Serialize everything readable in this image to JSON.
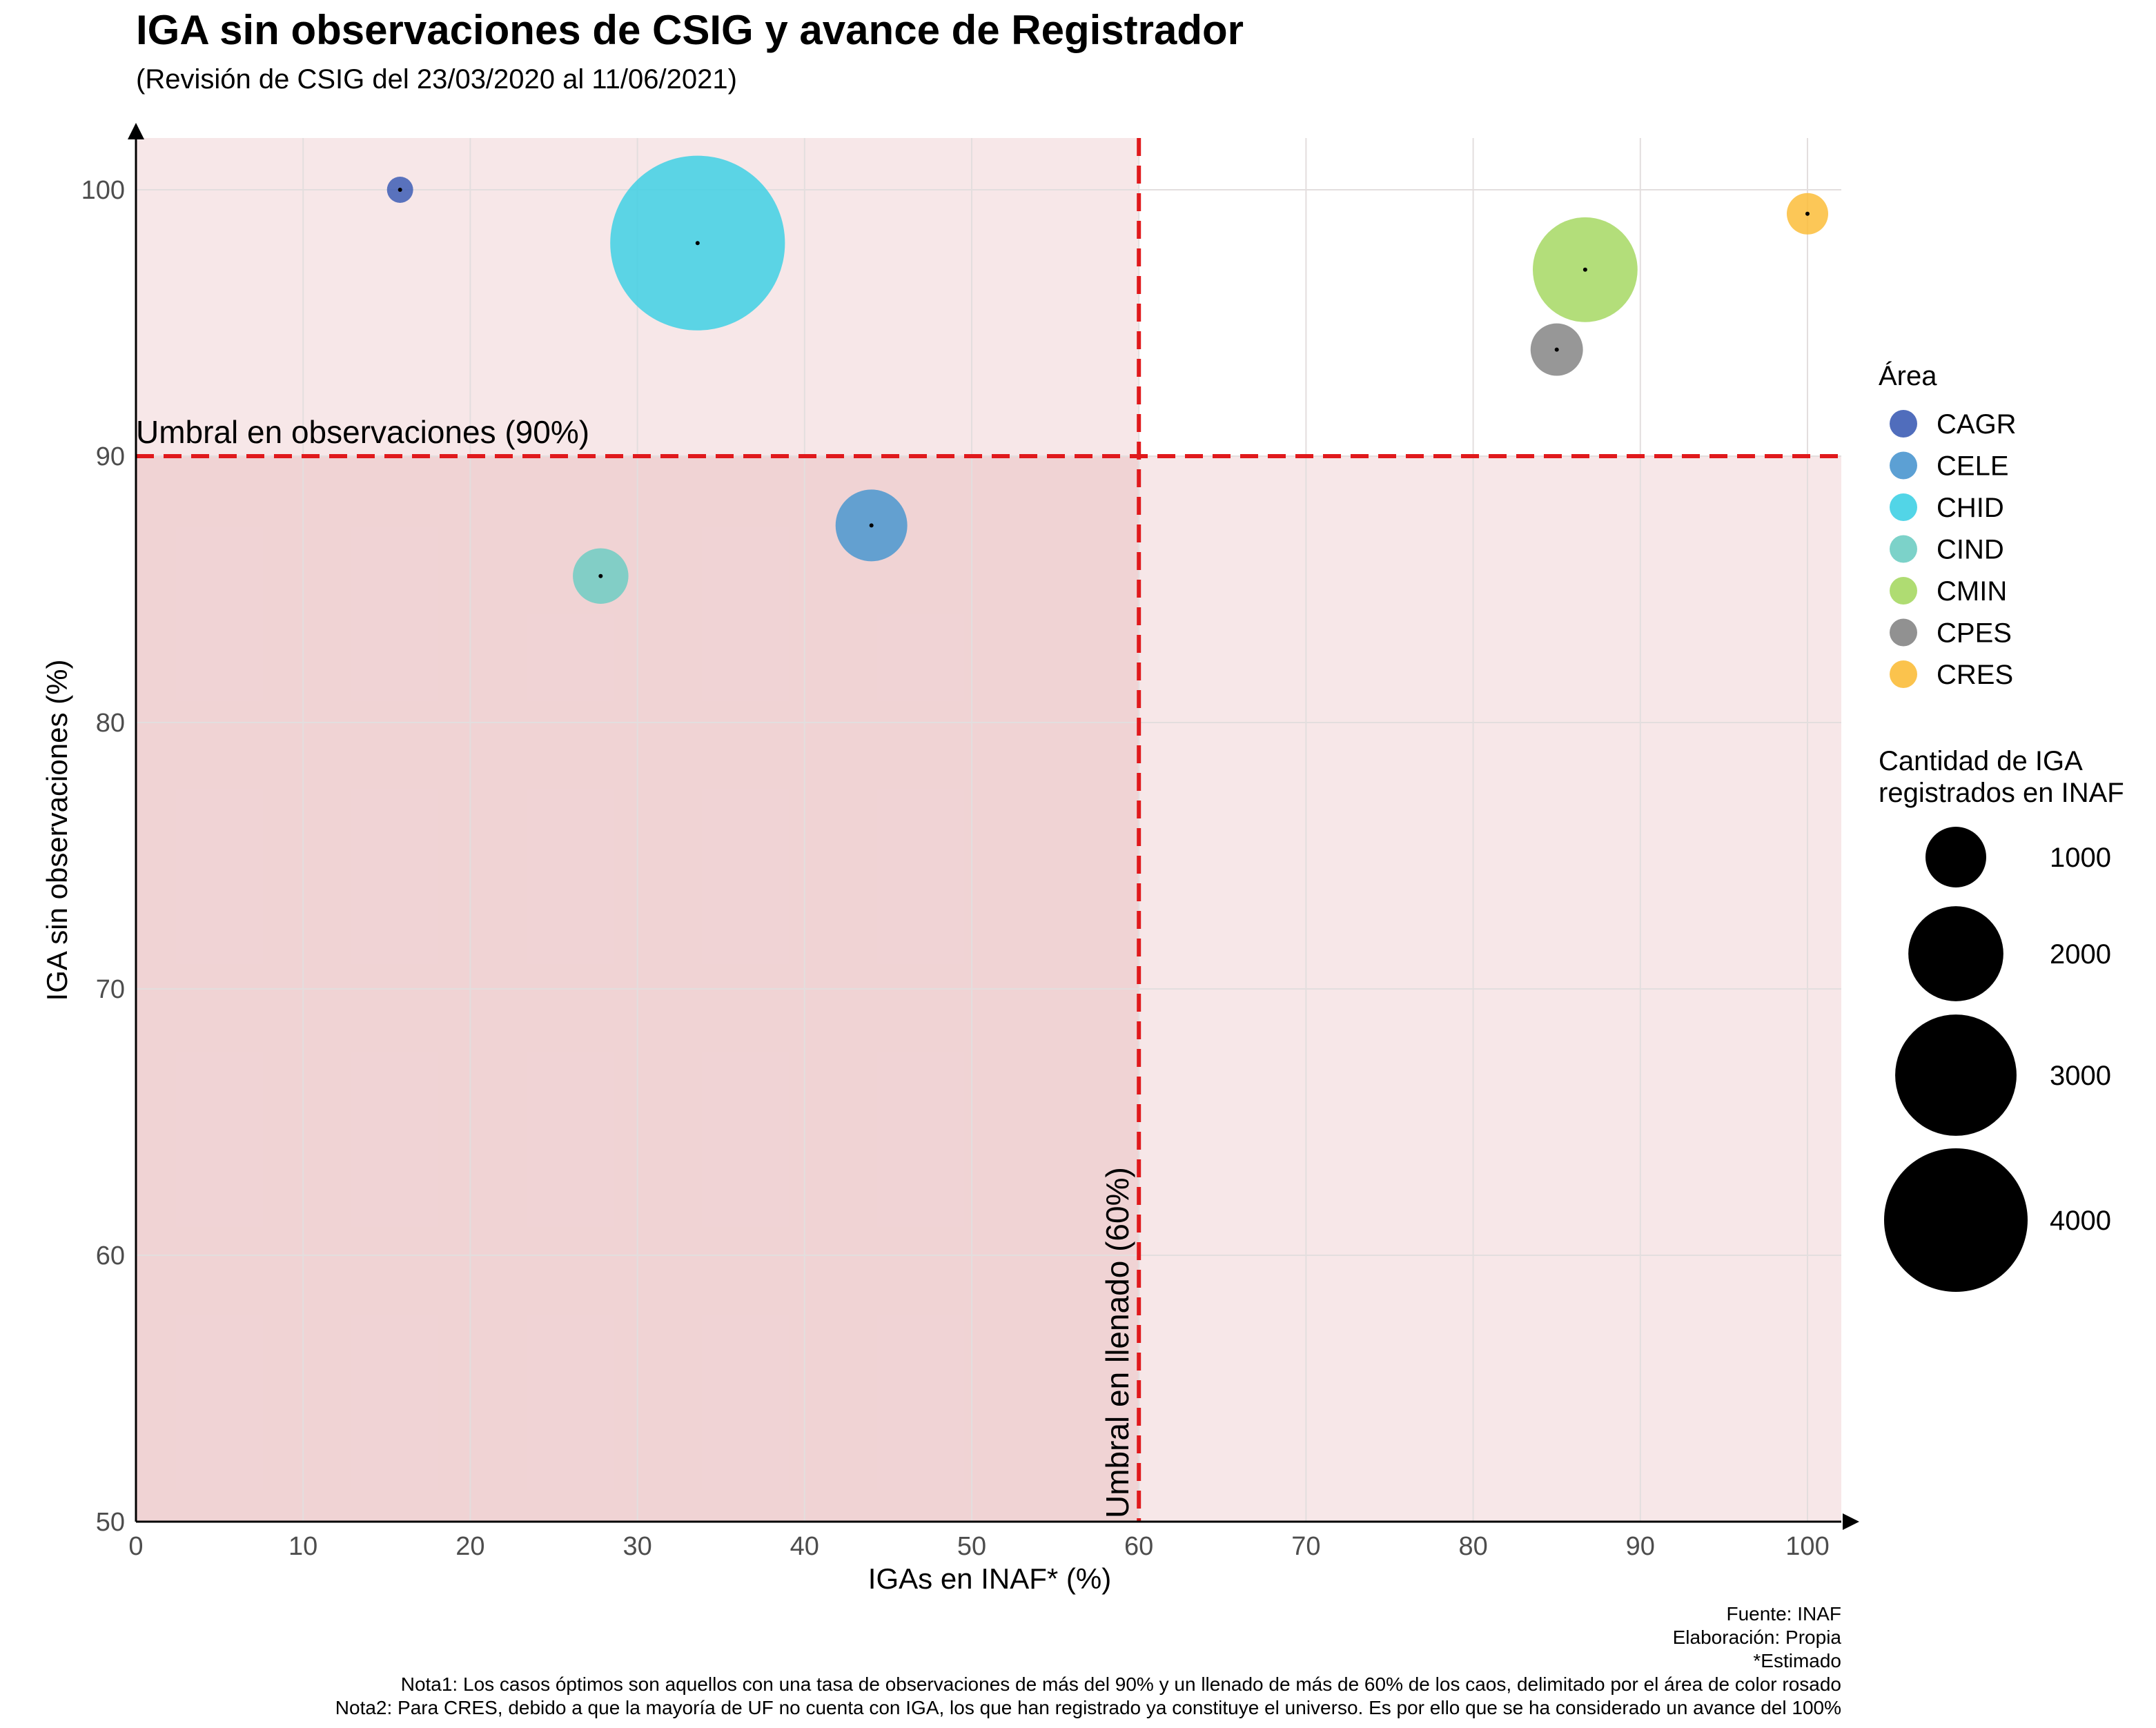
{
  "chart_data": {
    "type": "scatter",
    "title": "IGA sin observaciones de CSIG y avance de Registrador",
    "subtitle": "(Revisión de CSIG del 23/03/2020 al 11/06/2021)",
    "xlabel": "IGAs en INAF* (%)",
    "ylabel": "IGA sin observaciones (%)",
    "xlim": [
      0,
      102
    ],
    "ylim": [
      50,
      102
    ],
    "x_ticks": [
      0,
      10,
      20,
      30,
      40,
      50,
      60,
      70,
      80,
      90,
      100
    ],
    "y_ticks": [
      50,
      60,
      70,
      80,
      90,
      100
    ],
    "grid": true,
    "thresholds": {
      "x": 60,
      "y": 90,
      "x_label": "Umbral en llenado (60%)",
      "y_label": "Umbral en observaciones (90%)"
    },
    "points": [
      {
        "area": "CAGR",
        "x": 15.8,
        "y": 100.0,
        "size": 100
      },
      {
        "area": "CELE",
        "x": 44.0,
        "y": 87.4,
        "size": 750
      },
      {
        "area": "CHID",
        "x": 33.6,
        "y": 98.0,
        "size": 4450
      },
      {
        "area": "CIND",
        "x": 27.8,
        "y": 85.5,
        "size": 450
      },
      {
        "area": "CMIN",
        "x": 86.7,
        "y": 97.0,
        "size": 1600
      },
      {
        "area": "CPES",
        "x": 85.0,
        "y": 94.0,
        "size": 400
      },
      {
        "area": "CRES",
        "x": 100.0,
        "y": 99.1,
        "size": 250
      }
    ],
    "legend": {
      "color_title": "Área",
      "colors": {
        "CAGR": "#3d5db5",
        "CELE": "#4a96cf",
        "CHID": "#3fd0e4",
        "CIND": "#6ecdc3",
        "CMIN": "#a6d863",
        "CPES": "#858585",
        "CRES": "#fbbd3a"
      },
      "size_title_lines": [
        "Cantidad de IGA",
        "registrados en INAF"
      ],
      "size_values": [
        1000,
        2000,
        3000,
        4000
      ],
      "placement": "right"
    },
    "notes": [
      "Fuente: INAF",
      "Elaboración: Propia",
      "*Estimado",
      "Nota1: Los casos óptimos son aquellos con una tasa de observaciones de más del 90% y un llenado de más de 60% de los caos, delimitado por el área de color rosado",
      "Nota2: Para CRES, debido a que la mayoría de UF no cuenta con IGA, los que han registrado ya constituye el universo. Es por ello que se ha considerado un avance del 100%"
    ]
  }
}
